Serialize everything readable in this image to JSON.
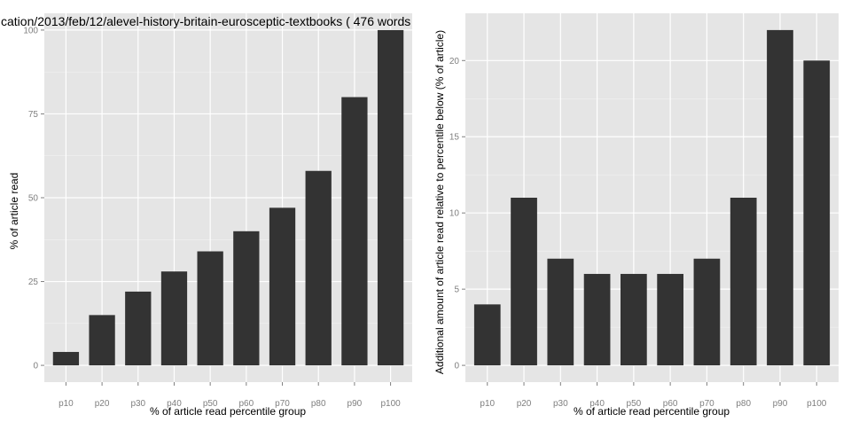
{
  "colors": {
    "panel_bg": "#e5e5e5",
    "grid_major": "#ffffff",
    "grid_minor": "#f2f2f2",
    "bar": "#333333",
    "tick": "#7f7f7f"
  },
  "chart_data": [
    {
      "type": "bar",
      "title": "cation/2013/feb/12/alevel-history-britain-eurosceptic-textbooks ( 476 words",
      "xlabel": "% of article read percentile group",
      "ylabel": "% of article read",
      "categories": [
        "p10",
        "p20",
        "p30",
        "p40",
        "p50",
        "p60",
        "p70",
        "p80",
        "p90",
        "p100"
      ],
      "values": [
        4,
        15,
        22,
        28,
        34,
        40,
        47,
        58,
        80,
        100
      ],
      "yticks": [
        0,
        25,
        50,
        75,
        100
      ],
      "ylim": [
        -5,
        105
      ],
      "grid": true,
      "legend": "none"
    },
    {
      "type": "bar",
      "title": "",
      "xlabel": "% of article read percentile group",
      "ylabel": "Additional amount of article read relative to percentile below (% of article)",
      "categories": [
        "p10",
        "p20",
        "p30",
        "p40",
        "p50",
        "p60",
        "p70",
        "p80",
        "p90",
        "p100"
      ],
      "values": [
        4,
        11,
        7,
        6,
        6,
        6,
        7,
        11,
        22,
        20
      ],
      "yticks": [
        0,
        5,
        10,
        15,
        20
      ],
      "ylim": [
        -1.1,
        23.1
      ],
      "grid": true,
      "legend": "none"
    }
  ]
}
